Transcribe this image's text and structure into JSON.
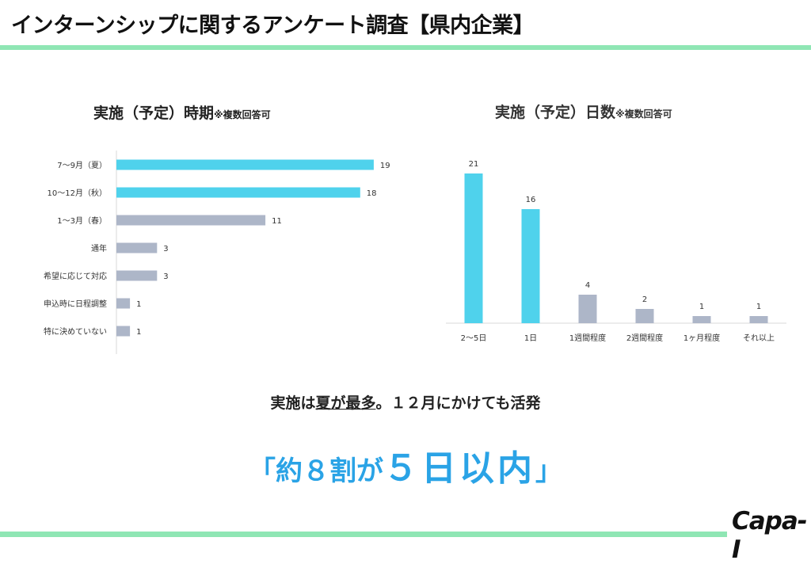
{
  "title": "インターンシップに関するアンケート調査【県内企業】",
  "chart_data": [
    {
      "type": "bar",
      "orientation": "horizontal",
      "title": "実施（予定）時期",
      "title_note": "※複数回答可",
      "categories": [
        "7～9月（夏）",
        "10～12月（秋）",
        "1～3月（春）",
        "通年",
        "希望に応じて対応",
        "申込時に日程調整",
        "特に決めていない"
      ],
      "values": [
        19,
        18,
        11,
        3,
        3,
        1,
        1
      ],
      "colors": [
        "#4fd2ec",
        "#4fd2ec",
        "#adb6c8",
        "#adb6c8",
        "#adb6c8",
        "#adb6c8",
        "#adb6c8"
      ],
      "xlim": [
        0,
        21
      ],
      "grid": false,
      "data_labels": true
    },
    {
      "type": "bar",
      "orientation": "vertical",
      "title": "実施（予定）日数",
      "title_note": "※複数回答可",
      "categories": [
        "2～5日",
        "1日",
        "1週間程度",
        "2週間程度",
        "1ヶ月程度",
        "それ以上"
      ],
      "values": [
        21,
        16,
        4,
        2,
        1,
        1
      ],
      "colors": [
        "#4fd2ec",
        "#4fd2ec",
        "#adb6c8",
        "#adb6c8",
        "#adb6c8",
        "#adb6c8"
      ],
      "ylim": [
        0,
        22
      ],
      "grid": false,
      "data_labels": true
    }
  ],
  "summary": {
    "p1": "実施は",
    "p2": "夏が最多",
    "p3": "。１２月にかけても活発"
  },
  "headline": {
    "open": "「約８割が",
    "emph": "５日以内",
    "close": "」"
  },
  "logo": {
    "text": "Capa-I"
  }
}
